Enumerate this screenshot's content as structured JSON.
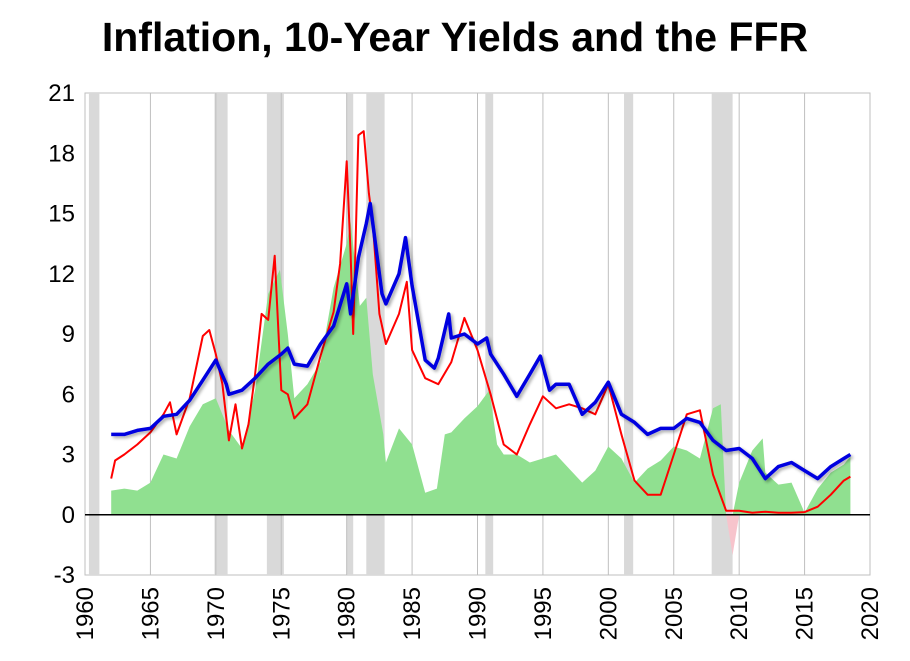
{
  "chart_data": {
    "type": "line",
    "title": "Inflation, 10-Year Yields and the FFR",
    "xlabel": "",
    "ylabel": "",
    "xlim": [
      1960,
      2020
    ],
    "ylim": [
      -3,
      21
    ],
    "x_ticks": [
      "1960",
      "1965",
      "1970",
      "1975",
      "1980",
      "1985",
      "1990",
      "1995",
      "2000",
      "2005",
      "2010",
      "2015",
      "2020"
    ],
    "y_ticks": [
      "-3",
      "0",
      "3",
      "6",
      "9",
      "12",
      "15",
      "18",
      "21"
    ],
    "grid": "vertical",
    "colors": {
      "recession": "#d9d9d9",
      "inflation_fill": "#90e090",
      "inflation_negative_fill": "#f7c4cc",
      "ffr": "#ff0000",
      "ten_year": "#0000e0"
    },
    "recessions": [
      [
        1960.3,
        1961.1
      ],
      [
        1969.9,
        1970.9
      ],
      [
        1973.9,
        1975.2
      ],
      [
        1980.0,
        1980.5
      ],
      [
        1981.5,
        1982.9
      ],
      [
        1990.6,
        1991.2
      ],
      [
        2001.2,
        2001.9
      ],
      [
        2007.9,
        2009.5
      ]
    ],
    "series": [
      {
        "key": "inflation",
        "render": "area",
        "points": [
          [
            1962.0,
            1.2
          ],
          [
            1963.0,
            1.3
          ],
          [
            1964.0,
            1.2
          ],
          [
            1965.0,
            1.6
          ],
          [
            1966.0,
            3.0
          ],
          [
            1967.0,
            2.8
          ],
          [
            1968.0,
            4.4
          ],
          [
            1969.0,
            5.5
          ],
          [
            1970.0,
            5.8
          ],
          [
            1971.0,
            4.2
          ],
          [
            1972.0,
            3.3
          ],
          [
            1973.0,
            6.2
          ],
          [
            1974.0,
            11.0
          ],
          [
            1974.9,
            12.2
          ],
          [
            1975.5,
            9.0
          ],
          [
            1976.0,
            5.8
          ],
          [
            1977.0,
            6.5
          ],
          [
            1978.0,
            7.6
          ],
          [
            1979.0,
            11.3
          ],
          [
            1980.0,
            13.5
          ],
          [
            1980.3,
            14.6
          ],
          [
            1981.0,
            10.4
          ],
          [
            1981.5,
            10.8
          ],
          [
            1982.0,
            7.0
          ],
          [
            1982.8,
            4.0
          ],
          [
            1983.0,
            2.6
          ],
          [
            1984.0,
            4.3
          ],
          [
            1985.0,
            3.5
          ],
          [
            1986.0,
            1.1
          ],
          [
            1986.9,
            1.3
          ],
          [
            1987.5,
            4.0
          ],
          [
            1988.0,
            4.1
          ],
          [
            1989.0,
            4.8
          ],
          [
            1990.0,
            5.4
          ],
          [
            1990.9,
            6.2
          ],
          [
            1991.5,
            3.5
          ],
          [
            1992.0,
            3.0
          ],
          [
            1993.0,
            3.0
          ],
          [
            1994.0,
            2.6
          ],
          [
            1995.0,
            2.8
          ],
          [
            1996.0,
            3.0
          ],
          [
            1997.0,
            2.3
          ],
          [
            1998.0,
            1.6
          ],
          [
            1999.0,
            2.2
          ],
          [
            2000.0,
            3.4
          ],
          [
            2001.0,
            2.8
          ],
          [
            2002.0,
            1.6
          ],
          [
            2003.0,
            2.3
          ],
          [
            2004.0,
            2.7
          ],
          [
            2005.0,
            3.4
          ],
          [
            2006.0,
            3.2
          ],
          [
            2007.0,
            2.8
          ],
          [
            2008.0,
            5.3
          ],
          [
            2008.6,
            5.5
          ],
          [
            2009.0,
            0.0
          ],
          [
            2009.5,
            -2.0
          ],
          [
            2010.0,
            1.6
          ],
          [
            2011.0,
            3.2
          ],
          [
            2011.8,
            3.8
          ],
          [
            2012.0,
            2.1
          ],
          [
            2013.0,
            1.5
          ],
          [
            2014.0,
            1.6
          ],
          [
            2015.0,
            0.1
          ],
          [
            2016.0,
            1.3
          ],
          [
            2017.0,
            2.1
          ],
          [
            2018.0,
            2.5
          ],
          [
            2018.5,
            2.9
          ]
        ]
      },
      {
        "key": "ffr",
        "render": "line",
        "points": [
          [
            1962.0,
            1.8
          ],
          [
            1962.3,
            2.7
          ],
          [
            1963.0,
            3.0
          ],
          [
            1964.0,
            3.5
          ],
          [
            1965.0,
            4.1
          ],
          [
            1966.0,
            5.0
          ],
          [
            1966.5,
            5.6
          ],
          [
            1967.0,
            4.0
          ],
          [
            1968.0,
            5.8
          ],
          [
            1969.0,
            8.9
          ],
          [
            1969.5,
            9.2
          ],
          [
            1970.0,
            8.0
          ],
          [
            1970.5,
            6.5
          ],
          [
            1971.0,
            3.7
          ],
          [
            1971.5,
            5.5
          ],
          [
            1972.0,
            3.3
          ],
          [
            1972.5,
            4.5
          ],
          [
            1973.0,
            7.0
          ],
          [
            1973.5,
            10.0
          ],
          [
            1974.0,
            9.7
          ],
          [
            1974.5,
            12.9
          ],
          [
            1975.0,
            6.2
          ],
          [
            1975.5,
            6.0
          ],
          [
            1976.0,
            4.8
          ],
          [
            1977.0,
            5.5
          ],
          [
            1978.0,
            7.9
          ],
          [
            1979.0,
            10.1
          ],
          [
            1979.5,
            12.5
          ],
          [
            1980.0,
            17.6
          ],
          [
            1980.3,
            13.0
          ],
          [
            1980.5,
            9.0
          ],
          [
            1980.9,
            18.9
          ],
          [
            1981.3,
            19.1
          ],
          [
            1981.7,
            16.0
          ],
          [
            1982.0,
            14.5
          ],
          [
            1982.5,
            10.0
          ],
          [
            1983.0,
            8.5
          ],
          [
            1984.0,
            10.0
          ],
          [
            1984.6,
            11.6
          ],
          [
            1985.0,
            8.2
          ],
          [
            1986.0,
            6.8
          ],
          [
            1987.0,
            6.5
          ],
          [
            1988.0,
            7.6
          ],
          [
            1989.0,
            9.8
          ],
          [
            1990.0,
            8.2
          ],
          [
            1991.0,
            6.0
          ],
          [
            1992.0,
            3.5
          ],
          [
            1993.0,
            3.0
          ],
          [
            1994.0,
            4.5
          ],
          [
            1995.0,
            5.9
          ],
          [
            1996.0,
            5.3
          ],
          [
            1997.0,
            5.5
          ],
          [
            1998.0,
            5.3
          ],
          [
            1999.0,
            5.0
          ],
          [
            2000.0,
            6.5
          ],
          [
            2001.0,
            4.0
          ],
          [
            2002.0,
            1.7
          ],
          [
            2003.0,
            1.0
          ],
          [
            2004.0,
            1.0
          ],
          [
            2005.0,
            3.0
          ],
          [
            2006.0,
            5.0
          ],
          [
            2007.0,
            5.2
          ],
          [
            2008.0,
            2.0
          ],
          [
            2009.0,
            0.2
          ],
          [
            2010.0,
            0.2
          ],
          [
            2011.0,
            0.1
          ],
          [
            2012.0,
            0.15
          ],
          [
            2013.0,
            0.1
          ],
          [
            2014.0,
            0.1
          ],
          [
            2015.0,
            0.13
          ],
          [
            2016.0,
            0.4
          ],
          [
            2017.0,
            1.0
          ],
          [
            2018.0,
            1.7
          ],
          [
            2018.5,
            1.9
          ]
        ]
      },
      {
        "key": "ten_year",
        "render": "line",
        "points": [
          [
            1962.0,
            4.0
          ],
          [
            1963.0,
            4.0
          ],
          [
            1964.0,
            4.2
          ],
          [
            1965.0,
            4.3
          ],
          [
            1966.0,
            4.9
          ],
          [
            1967.0,
            5.0
          ],
          [
            1968.0,
            5.7
          ],
          [
            1969.0,
            6.7
          ],
          [
            1970.0,
            7.7
          ],
          [
            1970.8,
            6.5
          ],
          [
            1971.0,
            6.0
          ],
          [
            1972.0,
            6.2
          ],
          [
            1973.0,
            6.8
          ],
          [
            1974.0,
            7.5
          ],
          [
            1975.0,
            8.0
          ],
          [
            1975.5,
            8.3
          ],
          [
            1976.0,
            7.5
          ],
          [
            1977.0,
            7.4
          ],
          [
            1978.0,
            8.5
          ],
          [
            1979.0,
            9.4
          ],
          [
            1980.0,
            11.5
          ],
          [
            1980.3,
            10.0
          ],
          [
            1980.9,
            12.8
          ],
          [
            1981.5,
            14.5
          ],
          [
            1981.8,
            15.5
          ],
          [
            1982.0,
            14.5
          ],
          [
            1982.7,
            11.0
          ],
          [
            1983.0,
            10.5
          ],
          [
            1984.0,
            12.0
          ],
          [
            1984.5,
            13.8
          ],
          [
            1985.0,
            11.4
          ],
          [
            1986.0,
            7.7
          ],
          [
            1986.7,
            7.3
          ],
          [
            1987.0,
            7.8
          ],
          [
            1987.8,
            10.0
          ],
          [
            1988.0,
            8.8
          ],
          [
            1989.0,
            9.0
          ],
          [
            1990.0,
            8.5
          ],
          [
            1990.7,
            8.8
          ],
          [
            1991.0,
            8.0
          ],
          [
            1992.0,
            7.0
          ],
          [
            1993.0,
            5.9
          ],
          [
            1994.0,
            7.0
          ],
          [
            1994.8,
            7.9
          ],
          [
            1995.5,
            6.2
          ],
          [
            1996.0,
            6.5
          ],
          [
            1997.0,
            6.5
          ],
          [
            1998.0,
            5.0
          ],
          [
            1999.0,
            5.6
          ],
          [
            2000.0,
            6.6
          ],
          [
            2001.0,
            5.0
          ],
          [
            2002.0,
            4.6
          ],
          [
            2003.0,
            4.0
          ],
          [
            2004.0,
            4.3
          ],
          [
            2005.0,
            4.3
          ],
          [
            2006.0,
            4.8
          ],
          [
            2007.0,
            4.6
          ],
          [
            2008.0,
            3.7
          ],
          [
            2009.0,
            3.2
          ],
          [
            2010.0,
            3.3
          ],
          [
            2011.0,
            2.8
          ],
          [
            2012.0,
            1.8
          ],
          [
            2013.0,
            2.4
          ],
          [
            2014.0,
            2.6
          ],
          [
            2015.0,
            2.2
          ],
          [
            2016.0,
            1.8
          ],
          [
            2017.0,
            2.4
          ],
          [
            2018.0,
            2.8
          ],
          [
            2018.5,
            3.0
          ]
        ]
      }
    ]
  }
}
